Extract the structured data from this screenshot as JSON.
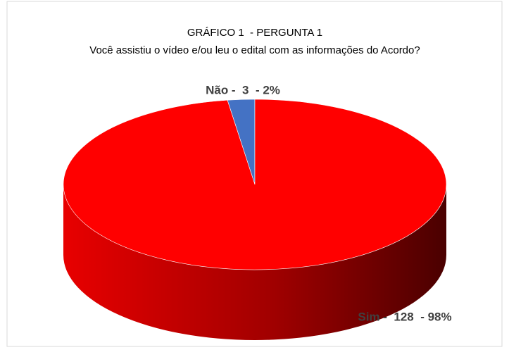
{
  "chart_data": {
    "type": "pie3d",
    "title": "GRÁFICO 1  - PERGUNTA 1",
    "subtitle": "Você assistiu o vídeo e/ou leu o edital com as informações do Acordo?",
    "values": [
      3,
      128
    ],
    "value_labels": [
      "Não -  3  - 2%",
      "Sim -  128  - 98%"
    ],
    "colors": [
      "#4472c4",
      "#ff0000"
    ]
  }
}
